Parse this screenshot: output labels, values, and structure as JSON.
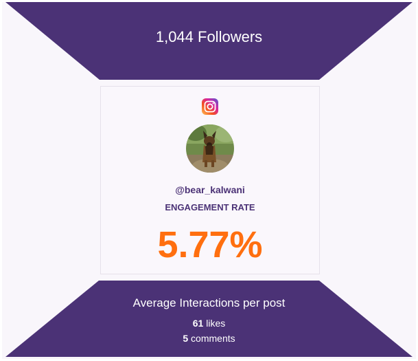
{
  "colors": {
    "purple": "#4b3276",
    "accent": "#ff6f0f",
    "background": "#f9f6fb"
  },
  "header": {
    "followers_text": "1,044 Followers"
  },
  "card": {
    "platform_icon": "instagram-icon",
    "username": "@bear_kalwani",
    "engagement_label": "ENGAGEMENT RATE",
    "engagement_value": "5.77%"
  },
  "footer": {
    "title": "Average Interactions per post",
    "likes_value": "61",
    "likes_label": "likes",
    "comments_value": "5",
    "comments_label": "comments"
  }
}
